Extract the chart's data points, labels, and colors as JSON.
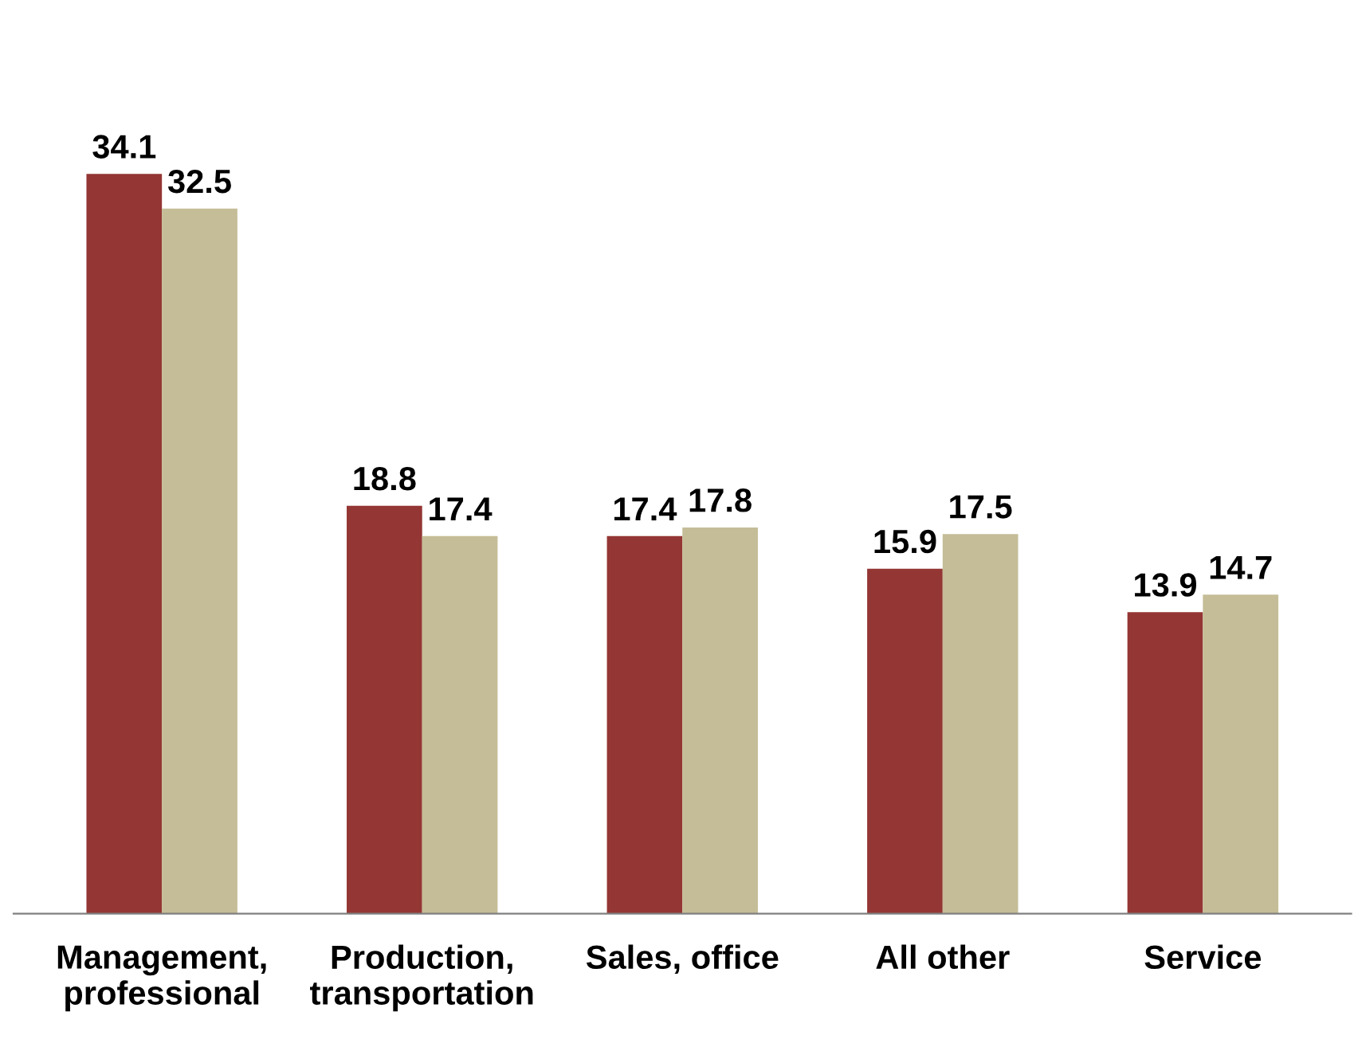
{
  "chart_data": {
    "type": "bar",
    "categories": [
      "Management,\nprofessional",
      "Production,\ntransportation",
      "Sales, office",
      "All other",
      "Service"
    ],
    "series": [
      {
        "color": "#943634",
        "values": [
          34.1,
          18.8,
          17.4,
          15.9,
          13.9
        ]
      },
      {
        "color": "#c4bd97",
        "values": [
          32.5,
          17.4,
          17.8,
          17.5,
          14.7
        ]
      }
    ],
    "data_labels": true,
    "grid": false,
    "legend": false
  }
}
